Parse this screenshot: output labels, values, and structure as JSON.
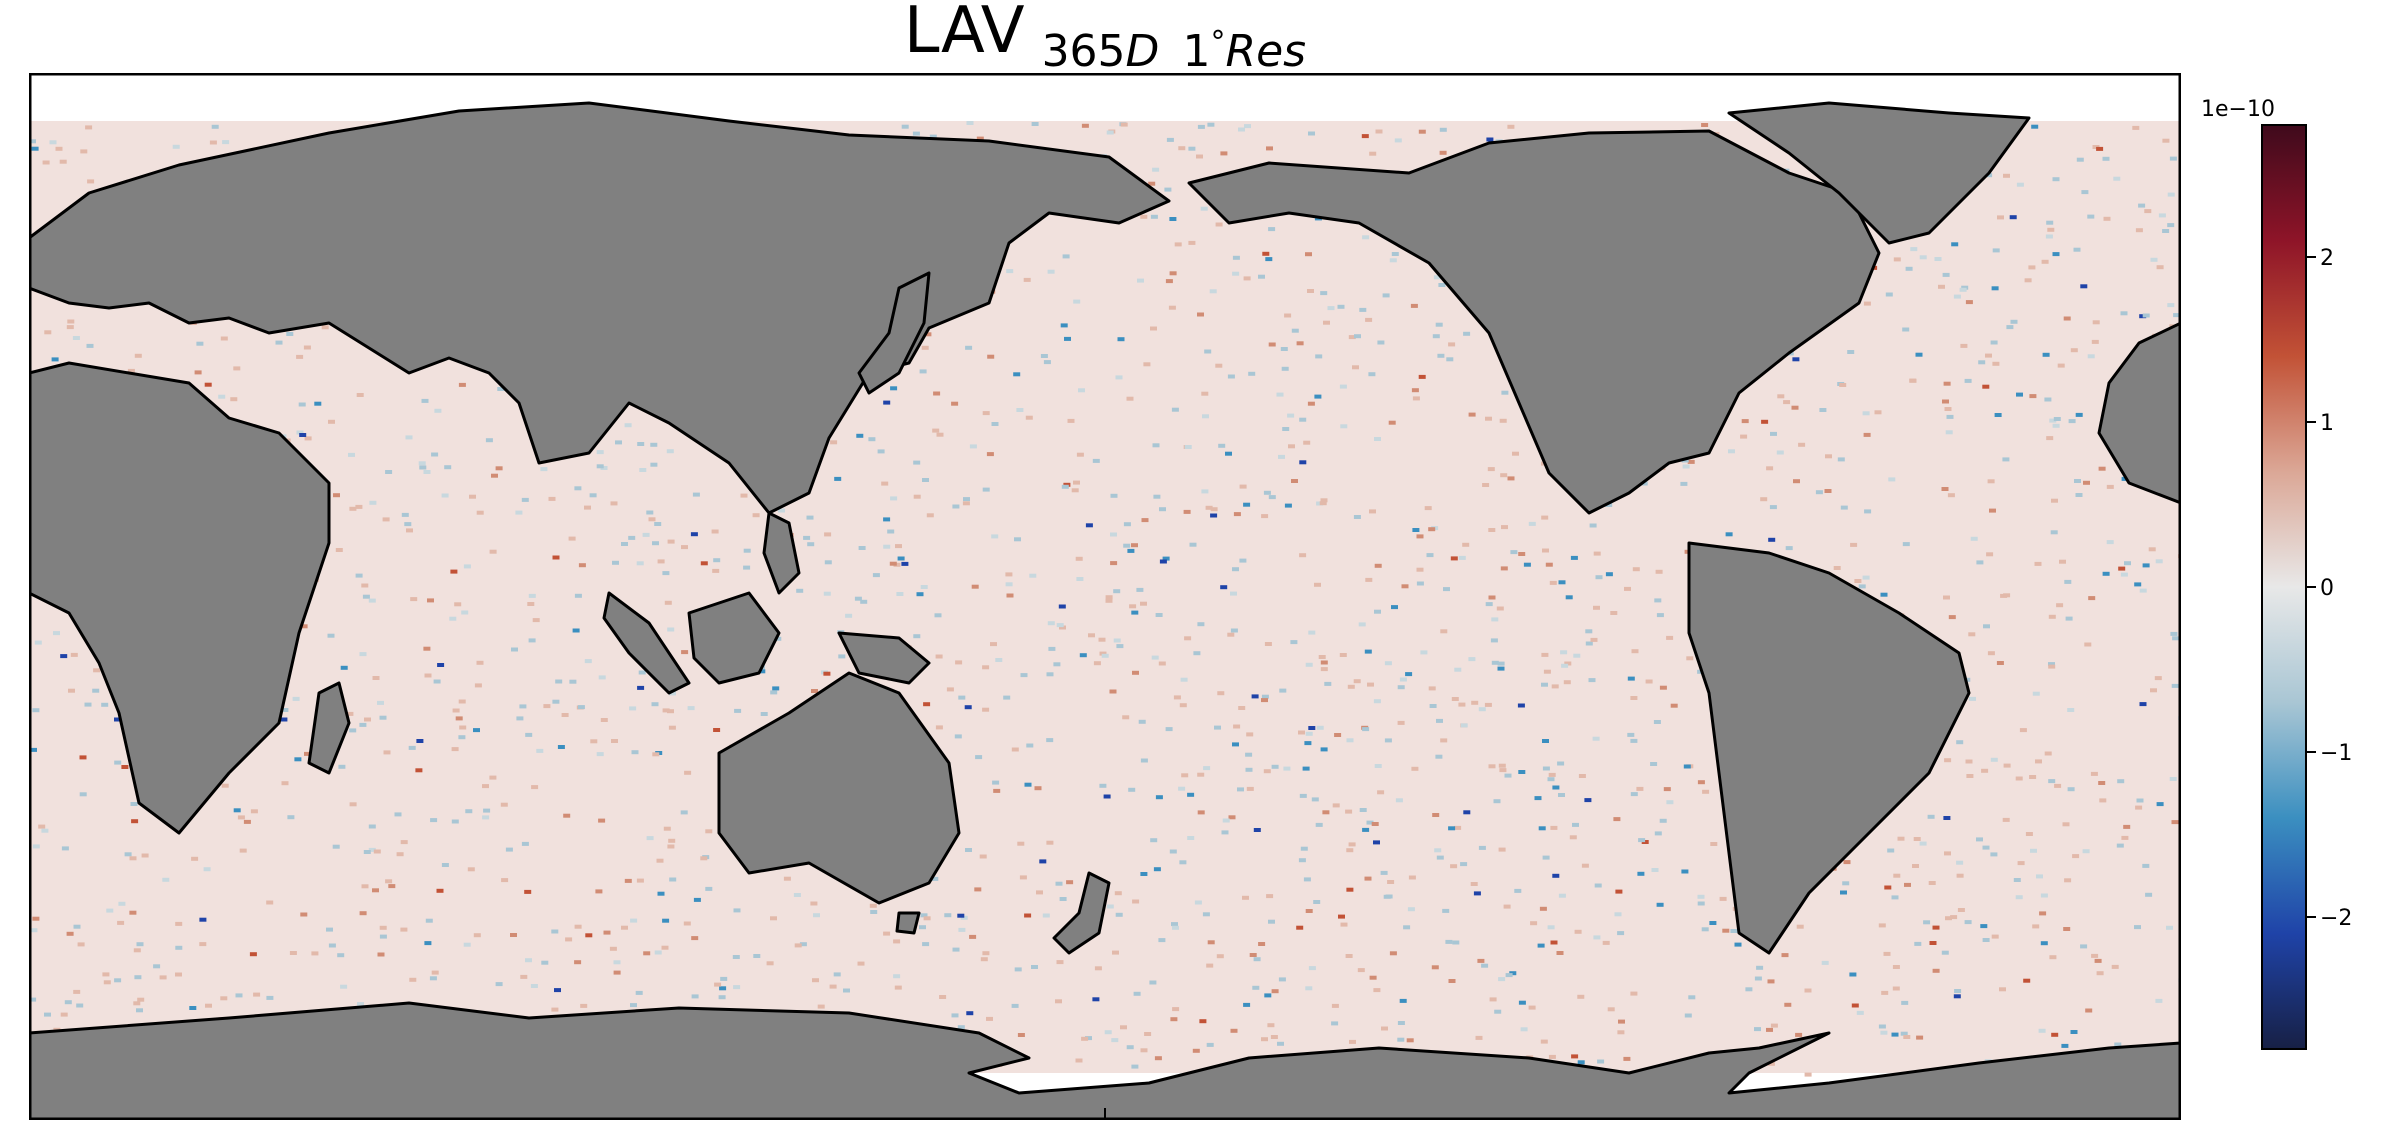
{
  "title": {
    "main": "LAV",
    "sub_a": "365",
    "sub_b": "D",
    "sub_c": "1",
    "sub_deg": "°",
    "sub_d": "Res"
  },
  "colorbar": {
    "exponent_label": "1e−10",
    "ticks": [
      {
        "value": 2,
        "label": "2"
      },
      {
        "value": 1,
        "label": "1"
      },
      {
        "value": 0,
        "label": "0"
      },
      {
        "value": -1,
        "label": "−1"
      },
      {
        "value": -2,
        "label": "−2"
      }
    ],
    "vmin": -2.8,
    "vmax": 2.8,
    "colormap": [
      "#172045",
      "#1f43a8",
      "#3b8fc0",
      "#a9c6d4",
      "#e8e8e8",
      "#dba796",
      "#c25236",
      "#8e1428",
      "#3f0a1c"
    ]
  },
  "map": {
    "projection": "plate-carree",
    "central_longitude": 180,
    "land_color": "#808080",
    "ocean_base_color": "#f1e1dd",
    "coastline_color": "#000000"
  }
}
